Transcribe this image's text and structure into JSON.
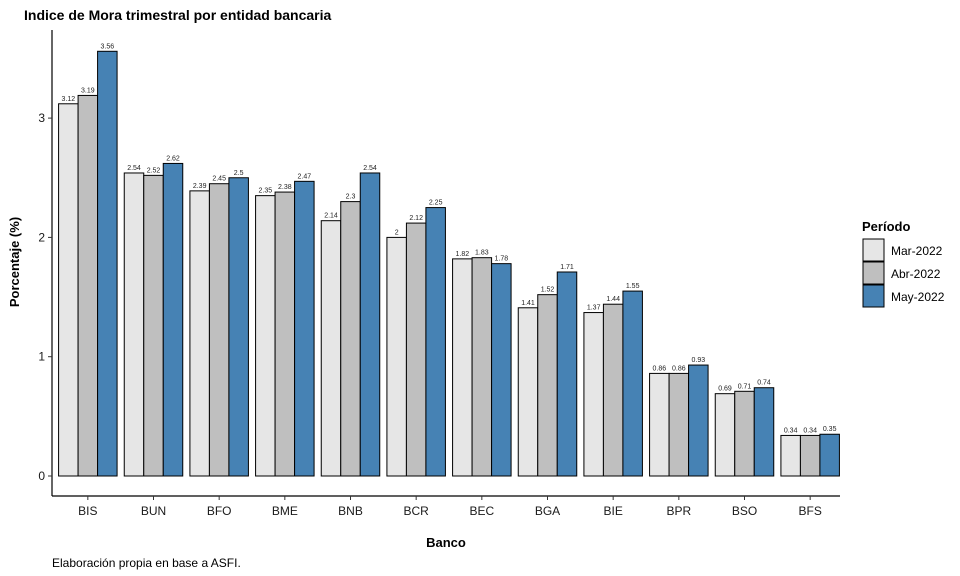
{
  "chart_data": {
    "type": "bar",
    "title": "Indice de Mora trimestral por entidad bancaria",
    "caption": "Elaboración propia en base a ASFI.",
    "xlabel": "Banco",
    "ylabel": "Porcentaje (%)",
    "ylim": [
      0,
      3.7
    ],
    "yticks": [
      0,
      1,
      2,
      3
    ],
    "grid": false,
    "legend": {
      "title": "Período",
      "position": "right"
    },
    "categories": [
      "BIS",
      "BUN",
      "BFO",
      "BME",
      "BNB",
      "BCR",
      "BEC",
      "BGA",
      "BIE",
      "BPR",
      "BSO",
      "BFS"
    ],
    "series": [
      {
        "name": "Mar-2022",
        "color": "#e6e6e6",
        "values": [
          3.12,
          2.54,
          2.39,
          2.35,
          2.14,
          2,
          1.82,
          1.41,
          1.37,
          0.86,
          0.69,
          0.34
        ]
      },
      {
        "name": "Abr-2022",
        "color": "#bfbfbf",
        "values": [
          3.19,
          2.52,
          2.45,
          2.38,
          2.3,
          2.12,
          1.83,
          1.52,
          1.44,
          0.86,
          0.71,
          0.34
        ]
      },
      {
        "name": "May-2022",
        "color": "#4682b4",
        "values": [
          3.56,
          2.62,
          2.5,
          2.47,
          2.54,
          2.25,
          1.78,
          1.71,
          1.55,
          0.93,
          0.74,
          0.35
        ]
      }
    ]
  }
}
